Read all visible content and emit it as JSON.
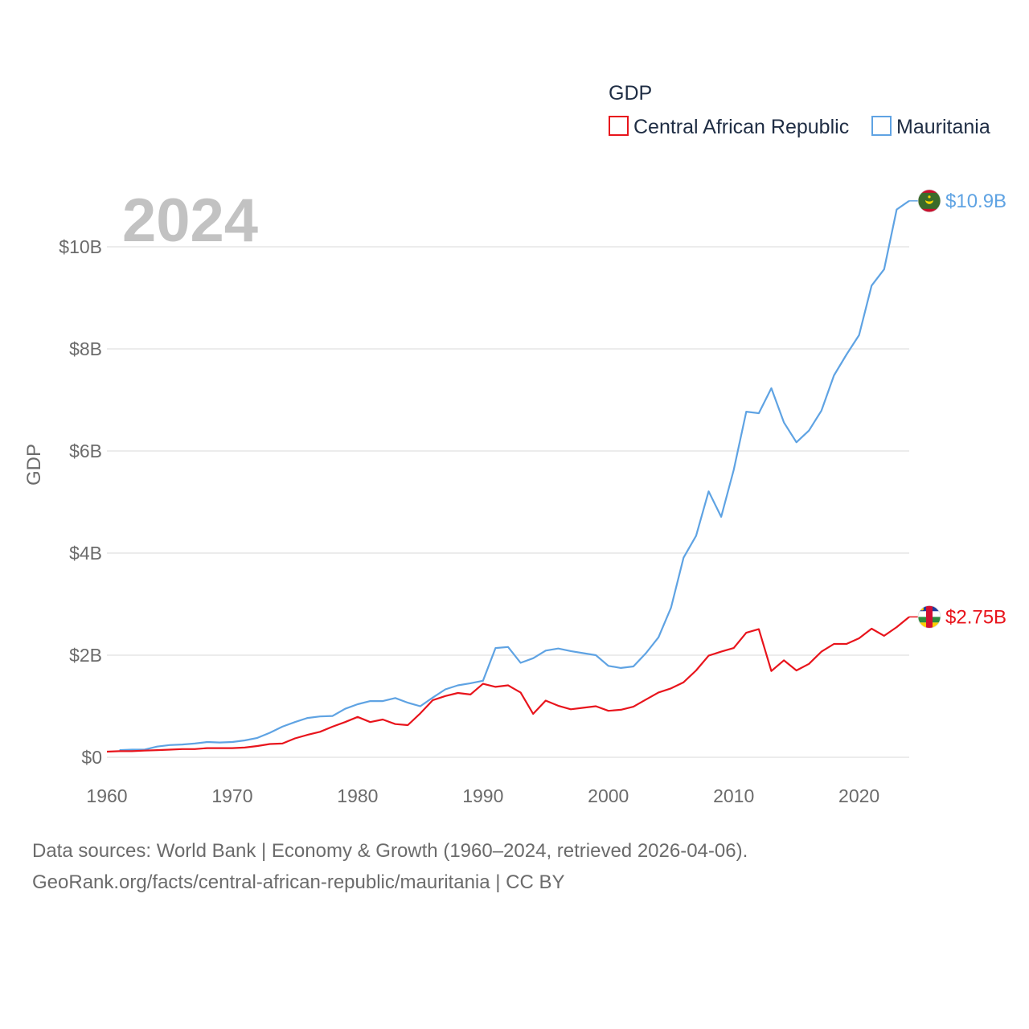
{
  "chart_data": {
    "type": "line",
    "title": "",
    "year_label": "2024",
    "xlabel": "",
    "ylabel": "GDP",
    "legend_title": "GDP",
    "legend_position": "top-right",
    "grid": true,
    "xlim": [
      1960,
      2024
    ],
    "ylim": [
      0,
      11000000000
    ],
    "x_ticks": [
      1960,
      1970,
      1980,
      1990,
      2000,
      2010,
      2020
    ],
    "x_tick_labels": [
      "1960",
      "1970",
      "1980",
      "1990",
      "2000",
      "2010",
      "2020"
    ],
    "y_ticks": [
      0,
      2000000000,
      4000000000,
      6000000000,
      8000000000,
      10000000000
    ],
    "y_tick_labels": [
      "$0",
      "$2B",
      "$4B",
      "$6B",
      "$8B",
      "$10B"
    ],
    "x": [
      1960,
      1961,
      1962,
      1963,
      1964,
      1965,
      1966,
      1967,
      1968,
      1969,
      1970,
      1971,
      1972,
      1973,
      1974,
      1975,
      1976,
      1977,
      1978,
      1979,
      1980,
      1981,
      1982,
      1983,
      1984,
      1985,
      1986,
      1987,
      1988,
      1989,
      1990,
      1991,
      1992,
      1993,
      1994,
      1995,
      1996,
      1997,
      1998,
      1999,
      2000,
      2001,
      2002,
      2003,
      2004,
      2005,
      2006,
      2007,
      2008,
      2009,
      2010,
      2011,
      2012,
      2013,
      2014,
      2015,
      2016,
      2017,
      2018,
      2019,
      2020,
      2021,
      2022,
      2023,
      2024
    ],
    "series": [
      {
        "name": "Central African Republic",
        "color": "#e8141c",
        "end_label": "$2.75B",
        "flag": "central-african-republic-flag-icon",
        "values": [
          0.11,
          0.12,
          0.12,
          0.13,
          0.14,
          0.15,
          0.16,
          0.16,
          0.18,
          0.18,
          0.18,
          0.19,
          0.22,
          0.26,
          0.27,
          0.37,
          0.44,
          0.5,
          0.6,
          0.69,
          0.79,
          0.69,
          0.74,
          0.65,
          0.63,
          0.86,
          1.12,
          1.2,
          1.26,
          1.23,
          1.44,
          1.38,
          1.41,
          1.27,
          0.85,
          1.11,
          1.01,
          0.94,
          0.97,
          1.0,
          0.91,
          0.93,
          0.99,
          1.13,
          1.27,
          1.35,
          1.47,
          1.7,
          1.99,
          2.07,
          2.14,
          2.44,
          2.51,
          1.69,
          1.9,
          1.7,
          1.83,
          2.07,
          2.22,
          2.22,
          2.33,
          2.52,
          2.38,
          2.55,
          2.75
        ]
      },
      {
        "name": "Mauritania",
        "color": "#5fa3e3",
        "end_label": "$10.9B",
        "flag": "mauritania-flag-icon",
        "values": [
          null,
          0.14,
          0.15,
          0.15,
          0.21,
          0.24,
          0.25,
          0.27,
          0.3,
          0.29,
          0.3,
          0.33,
          0.38,
          0.48,
          0.6,
          0.69,
          0.77,
          0.8,
          0.81,
          0.95,
          1.04,
          1.1,
          1.1,
          1.16,
          1.07,
          1.0,
          1.17,
          1.33,
          1.41,
          1.45,
          1.5,
          2.14,
          2.16,
          1.85,
          1.94,
          2.09,
          2.13,
          2.08,
          2.04,
          2.0,
          1.79,
          1.75,
          1.78,
          2.04,
          2.35,
          2.93,
          3.91,
          4.34,
          5.21,
          4.71,
          5.63,
          6.77,
          6.74,
          7.23,
          6.56,
          6.17,
          6.4,
          6.79,
          7.48,
          7.89,
          8.27,
          9.24,
          9.56,
          10.73,
          10.9
        ]
      }
    ],
    "value_multiplier": 1000000000
  },
  "footer": {
    "line1": "Data sources: World Bank | Economy & Growth (1960–2024, retrieved 2026-04-06).",
    "line2": "GeoRank.org/facts/central-african-republic/mauritania | CC BY"
  }
}
